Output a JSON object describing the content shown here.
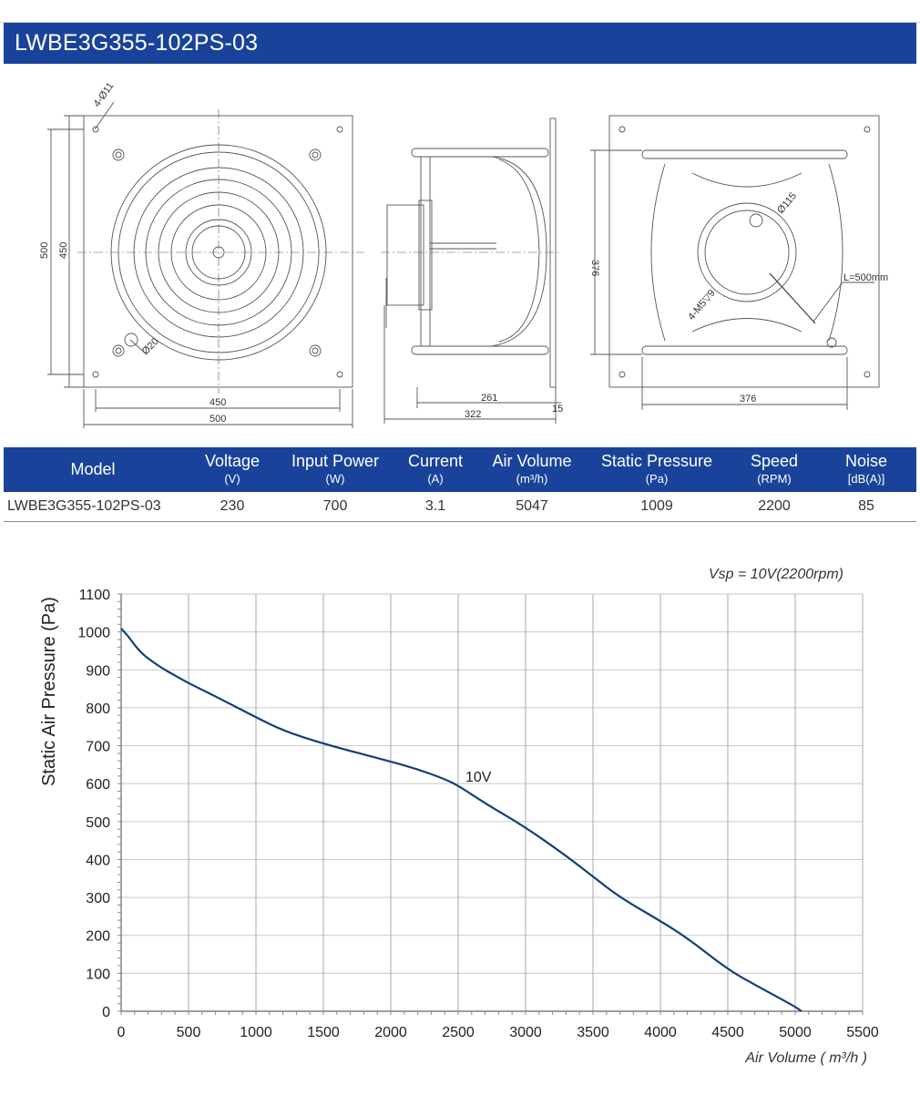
{
  "title": "LWBE3G355-102PS-03",
  "drawing": {
    "dim_hole": "4-Ø11",
    "dim_500_v": "500",
    "dim_450_v": "450",
    "dim_450_h": "450",
    "dim_500_h": "500",
    "dim_d20": "Ø20",
    "dim_261": "261",
    "dim_322": "322",
    "dim_15": "15",
    "dim_376_v": "376",
    "dim_376_h": "376",
    "dim_d115": "Ø115",
    "dim_l500": "L=500mm",
    "dim_m5": "4-M5▽9"
  },
  "table": {
    "headers": [
      {
        "label": "Model",
        "unit": ""
      },
      {
        "label": "Voltage",
        "unit": "(V)"
      },
      {
        "label": "Input Power",
        "unit": "(W)"
      },
      {
        "label": "Current",
        "unit": "(A)"
      },
      {
        "label": "Air Volume",
        "unit": "(m³/h)"
      },
      {
        "label": "Static Pressure",
        "unit": "(Pa)"
      },
      {
        "label": "Speed",
        "unit": "(RPM)"
      },
      {
        "label": "Noise",
        "unit": "[dB(A)]"
      }
    ],
    "row": [
      "LWBE3G355-102PS-03",
      "230",
      "700",
      "3.1",
      "5047",
      "1009",
      "2200",
      "85"
    ]
  },
  "chart_data": {
    "type": "line",
    "title": "",
    "annotation": "Vsp = 10V(2200rpm)",
    "xlabel": "Air Volume ( m³/h )",
    "ylabel": "Static Air Pressure  (Pa)",
    "xlim": [
      0,
      5500
    ],
    "ylim": [
      0,
      1100
    ],
    "x_ticks": [
      0,
      500,
      1000,
      1500,
      2000,
      2500,
      3000,
      3500,
      4000,
      4500,
      5000,
      5500
    ],
    "y_ticks": [
      0,
      100,
      200,
      300,
      400,
      500,
      600,
      700,
      800,
      900,
      1000,
      1100
    ],
    "grid": true,
    "series": [
      {
        "name": "10V",
        "color": "#143f7a",
        "x": [
          0,
          50,
          100,
          150,
          200,
          300,
          400,
          500,
          700,
          1000,
          1200,
          1500,
          2000,
          2200,
          2400,
          2500,
          2700,
          3000,
          3300,
          3500,
          3700,
          4000,
          4200,
          4500,
          4700,
          5000,
          5047
        ],
        "y": [
          1009,
          990,
          965,
          945,
          930,
          905,
          885,
          865,
          830,
          775,
          740,
          705,
          658,
          638,
          612,
          595,
          548,
          485,
          410,
          355,
          300,
          238,
          193,
          110,
          70,
          12,
          0
        ]
      }
    ],
    "series_label": {
      "text": "10V",
      "x": 2650,
      "y": 620
    }
  }
}
